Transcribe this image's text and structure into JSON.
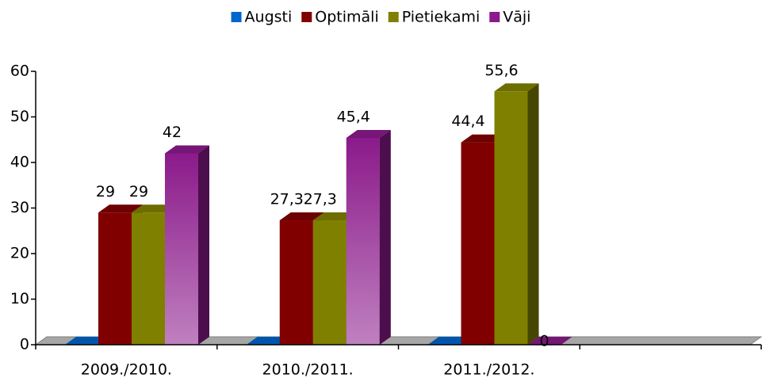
{
  "chart_data": {
    "type": "bar3d",
    "categories": [
      "2009./2010.",
      "2010./2011.",
      "2011./2012.",
      null
    ],
    "series": [
      {
        "name": "Augsti",
        "color": "#0066cc",
        "values": [
          0,
          0,
          0,
          null
        ]
      },
      {
        "name": "Optimāli",
        "color": "#800000",
        "values": [
          29,
          27.3,
          44.4,
          null
        ],
        "value_labels": [
          "29",
          "27,3",
          "44,4",
          null
        ]
      },
      {
        "name": "Pietiekami",
        "color": "#808000",
        "values": [
          29,
          27.3,
          55.6,
          null
        ],
        "value_labels": [
          "29",
          "27,3",
          "55,6",
          null
        ]
      },
      {
        "name": "Vāji",
        "color": "#8b1a8b",
        "gradient": true,
        "values": [
          42,
          45.4,
          0,
          null
        ],
        "value_labels": [
          "42",
          "45,4",
          "0",
          null
        ]
      }
    ],
    "ylim": [
      0,
      60
    ],
    "yticks": [
      0,
      10,
      20,
      30,
      40,
      50,
      60
    ],
    "legend": "top"
  }
}
